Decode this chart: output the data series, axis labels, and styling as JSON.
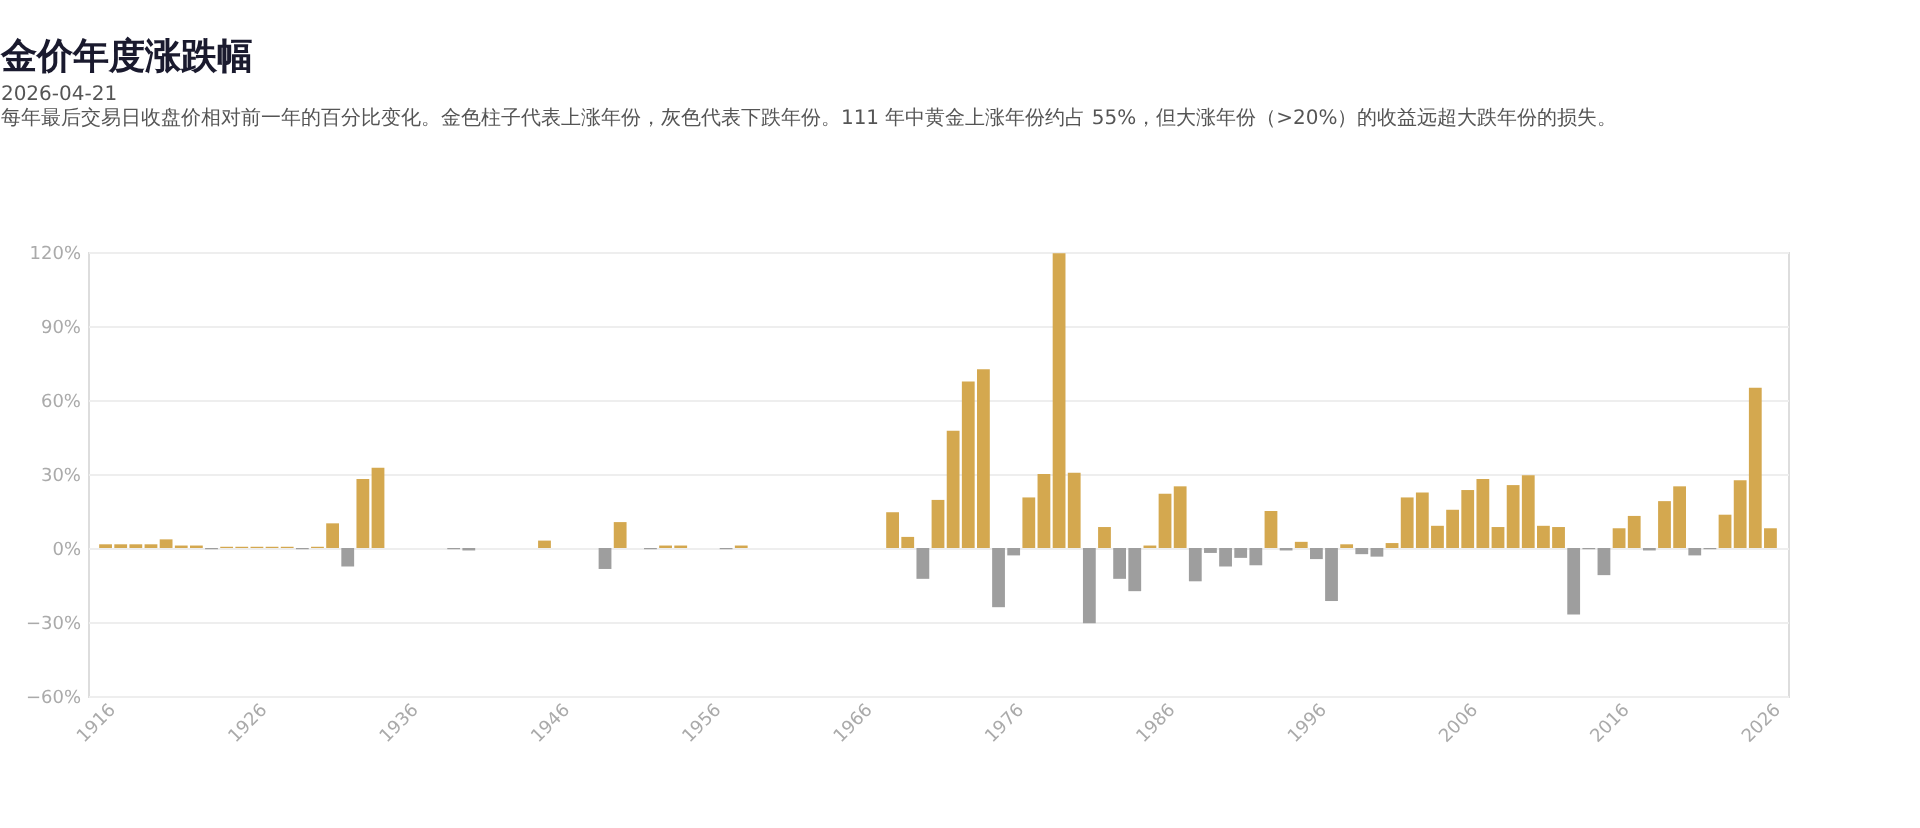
{
  "chart_data": {
    "type": "bar",
    "title": "金价年度涨跌幅",
    "subtitle": "2026-04-21",
    "annotations": [
      "每年最后交易日收盘价相对前一年的百分比变化。金色柱子代表上涨年份，灰色代表下跌年份。111 年中黄金上涨年份约占 55%，但大涨年份（>20%）的收益远超大跌年份的损失。"
    ],
    "x": [
      1916,
      1917,
      1918,
      1919,
      1920,
      1921,
      1922,
      1923,
      1924,
      1925,
      1926,
      1927,
      1928,
      1929,
      1930,
      1931,
      1932,
      1933,
      1934,
      1935,
      1936,
      1937,
      1938,
      1939,
      1940,
      1941,
      1942,
      1943,
      1944,
      1945,
      1946,
      1947,
      1948,
      1949,
      1950,
      1951,
      1952,
      1953,
      1954,
      1955,
      1956,
      1957,
      1958,
      1959,
      1960,
      1961,
      1962,
      1963,
      1964,
      1965,
      1966,
      1967,
      1968,
      1969,
      1970,
      1971,
      1972,
      1973,
      1974,
      1975,
      1976,
      1977,
      1978,
      1979,
      1980,
      1981,
      1982,
      1983,
      1984,
      1985,
      1986,
      1987,
      1988,
      1989,
      1990,
      1991,
      1992,
      1993,
      1994,
      1995,
      1996,
      1997,
      1998,
      1999,
      2000,
      2001,
      2002,
      2003,
      2004,
      2005,
      2006,
      2007,
      2008,
      2009,
      2010,
      2011,
      2012,
      2013,
      2014,
      2015,
      2016,
      2017,
      2018,
      2019,
      2020,
      2021,
      2022,
      2023,
      2024,
      2025,
      2026
    ],
    "values": [
      1.5,
      1.5,
      1.5,
      1.5,
      3.5,
      1,
      1,
      -0.5,
      0.5,
      0.5,
      0.5,
      0.5,
      0.5,
      -0.5,
      0.5,
      10,
      -7.5,
      28,
      32.5,
      null,
      null,
      null,
      null,
      -0.5,
      -1,
      null,
      null,
      null,
      null,
      3,
      null,
      null,
      null,
      -8.5,
      10.5,
      null,
      -0.5,
      1,
      1,
      null,
      null,
      -0.5,
      1,
      null,
      null,
      null,
      null,
      null,
      null,
      null,
      null,
      null,
      14.5,
      4.5,
      -12.5,
      19.5,
      47.5,
      67.5,
      72.5,
      -24,
      -3,
      20.5,
      30,
      119.5,
      30.5,
      -30.5,
      8.5,
      -12.5,
      -17.5,
      1,
      22,
      25,
      -13.5,
      -2,
      -7.5,
      -4,
      -7,
      15,
      -1,
      2.5,
      -4.5,
      -21.5,
      1.5,
      -2.5,
      -3.5,
      2,
      20.5,
      22.5,
      9,
      15.5,
      23.5,
      28,
      8.5,
      25.5,
      29.5,
      9,
      8.5,
      -27,
      -0.5,
      -11,
      8,
      13,
      -1,
      19,
      25,
      -3,
      -0.5,
      13.5,
      27.5,
      65,
      8
    ],
    "colors": [
      "#d4a84f",
      "#d4a84f",
      "#d4a84f",
      "#d4a84f",
      "#d4a84f",
      "#d4a84f",
      "#d4a84f",
      "#9e9e9e",
      "#d4a84f",
      "#d4a84f",
      "#d4a84f",
      "#d4a84f",
      "#d4a84f",
      "#9e9e9e",
      "#d4a84f",
      "#d4a84f",
      "#9e9e9e",
      "#d4a84f",
      "#d4a84f",
      "#d4a84f",
      "#d4a84f",
      "#d4a84f",
      "#d4a84f",
      "#9e9e9e",
      "#9e9e9e",
      "#d4a84f",
      "#d4a84f",
      "#d4a84f",
      "#d4a84f",
      "#d4a84f",
      "#d4a84f",
      "#d4a84f",
      "#d4a84f",
      "#9e9e9e",
      "#d4a84f",
      "#d4a84f",
      "#9e9e9e",
      "#d4a84f",
      "#d4a84f",
      "#d4a84f",
      "#d4a84f",
      "#9e9e9e",
      "#d4a84f",
      "#d4a84f",
      "#d4a84f",
      "#d4a84f",
      "#d4a84f",
      "#d4a84f",
      "#d4a84f",
      "#d4a84f",
      "#d4a84f",
      "#d4a84f",
      "#d4a84f",
      "#d4a84f",
      "#9e9e9e",
      "#d4a84f",
      "#d4a84f",
      "#d4a84f",
      "#d4a84f",
      "#9e9e9e",
      "#9e9e9e",
      "#d4a84f",
      "#d4a84f",
      "#d4a84f",
      "#d4a84f",
      "#9e9e9e",
      "#d4a84f",
      "#9e9e9e",
      "#9e9e9e",
      "#d4a84f",
      "#d4a84f",
      "#d4a84f",
      "#9e9e9e",
      "#9e9e9e",
      "#9e9e9e",
      "#9e9e9e",
      "#9e9e9e",
      "#d4a84f",
      "#9e9e9e",
      "#d4a84f",
      "#9e9e9e",
      "#9e9e9e",
      "#d4a84f",
      "#9e9e9e",
      "#9e9e9e",
      "#d4a84f",
      "#d4a84f",
      "#d4a84f",
      "#d4a84f",
      "#d4a84f",
      "#d4a84f",
      "#d4a84f",
      "#d4a84f",
      "#d4a84f",
      "#d4a84f",
      "#d4a84f",
      "#d4a84f",
      "#9e9e9e",
      "#9e9e9e",
      "#9e9e9e",
      "#d4a84f",
      "#d4a84f",
      "#9e9e9e",
      "#d4a84f",
      "#d4a84f",
      "#9e9e9e",
      "#9e9e9e",
      "#d4a84f",
      "#d4a84f",
      "#d4a84f",
      "#d4a84f"
    ],
    "xlim": [
      1915.5,
      2026.5
    ],
    "xticks": [
      1916,
      1926,
      1936,
      1946,
      1956,
      1966,
      1976,
      1986,
      1996,
      2006,
      2016,
      2026
    ],
    "ylim": [
      -60,
      120
    ],
    "yticks": [
      {
        "value": -60,
        "label": "−60%"
      },
      {
        "value": -30,
        "label": "−30%"
      },
      {
        "value": 0,
        "label": "0%"
      },
      {
        "value": 30,
        "label": "30%"
      },
      {
        "value": 60,
        "label": "60%"
      },
      {
        "value": 90,
        "label": "90%"
      },
      {
        "value": 120,
        "label": "120%"
      }
    ],
    "grid": "y"
  }
}
